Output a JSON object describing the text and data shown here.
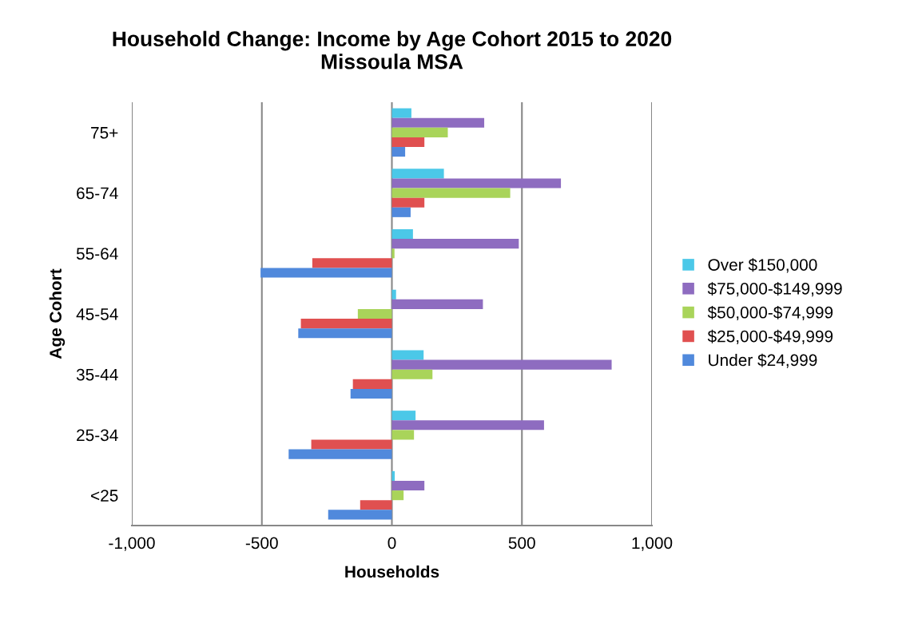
{
  "chart_data": {
    "type": "bar",
    "orientation": "horizontal",
    "title": "Household Change: Income by Age Cohort 2015 to 2020\nMissoula MSA",
    "xlabel": "Households",
    "ylabel": "Age Cohort",
    "categories": [
      "75+",
      "65-74",
      "55-64",
      "45-54",
      "35-44",
      "25-34",
      "<25"
    ],
    "series": [
      {
        "name": "Over $150,000",
        "color": "#4bc8e8",
        "values": [
          75,
          200,
          81,
          16,
          122,
          91,
          11
        ]
      },
      {
        "name": "$75,000-$149,999",
        "color": "#8e6cc0",
        "values": [
          355,
          650,
          488,
          350,
          845,
          585,
          125
        ]
      },
      {
        "name": "$50,000-$74,999",
        "color": "#a9d45a",
        "values": [
          215,
          455,
          10,
          -131,
          156,
          85,
          45
        ]
      },
      {
        "name": "$25,000-$49,999",
        "color": "#e05050",
        "values": [
          125,
          125,
          -306,
          -350,
          -150,
          -310,
          -122
        ]
      },
      {
        "name": "Under $24,999",
        "color": "#5089dc",
        "values": [
          51,
          72,
          -505,
          -360,
          -159,
          -397,
          -245
        ]
      }
    ],
    "xlim": [
      -1000,
      1000
    ],
    "xticks": [
      {
        "value": -1000,
        "label": "-1,000"
      },
      -500,
      0,
      500,
      {
        "value": 1000,
        "label": "1,000"
      }
    ],
    "grid": "x",
    "legend": "right"
  }
}
